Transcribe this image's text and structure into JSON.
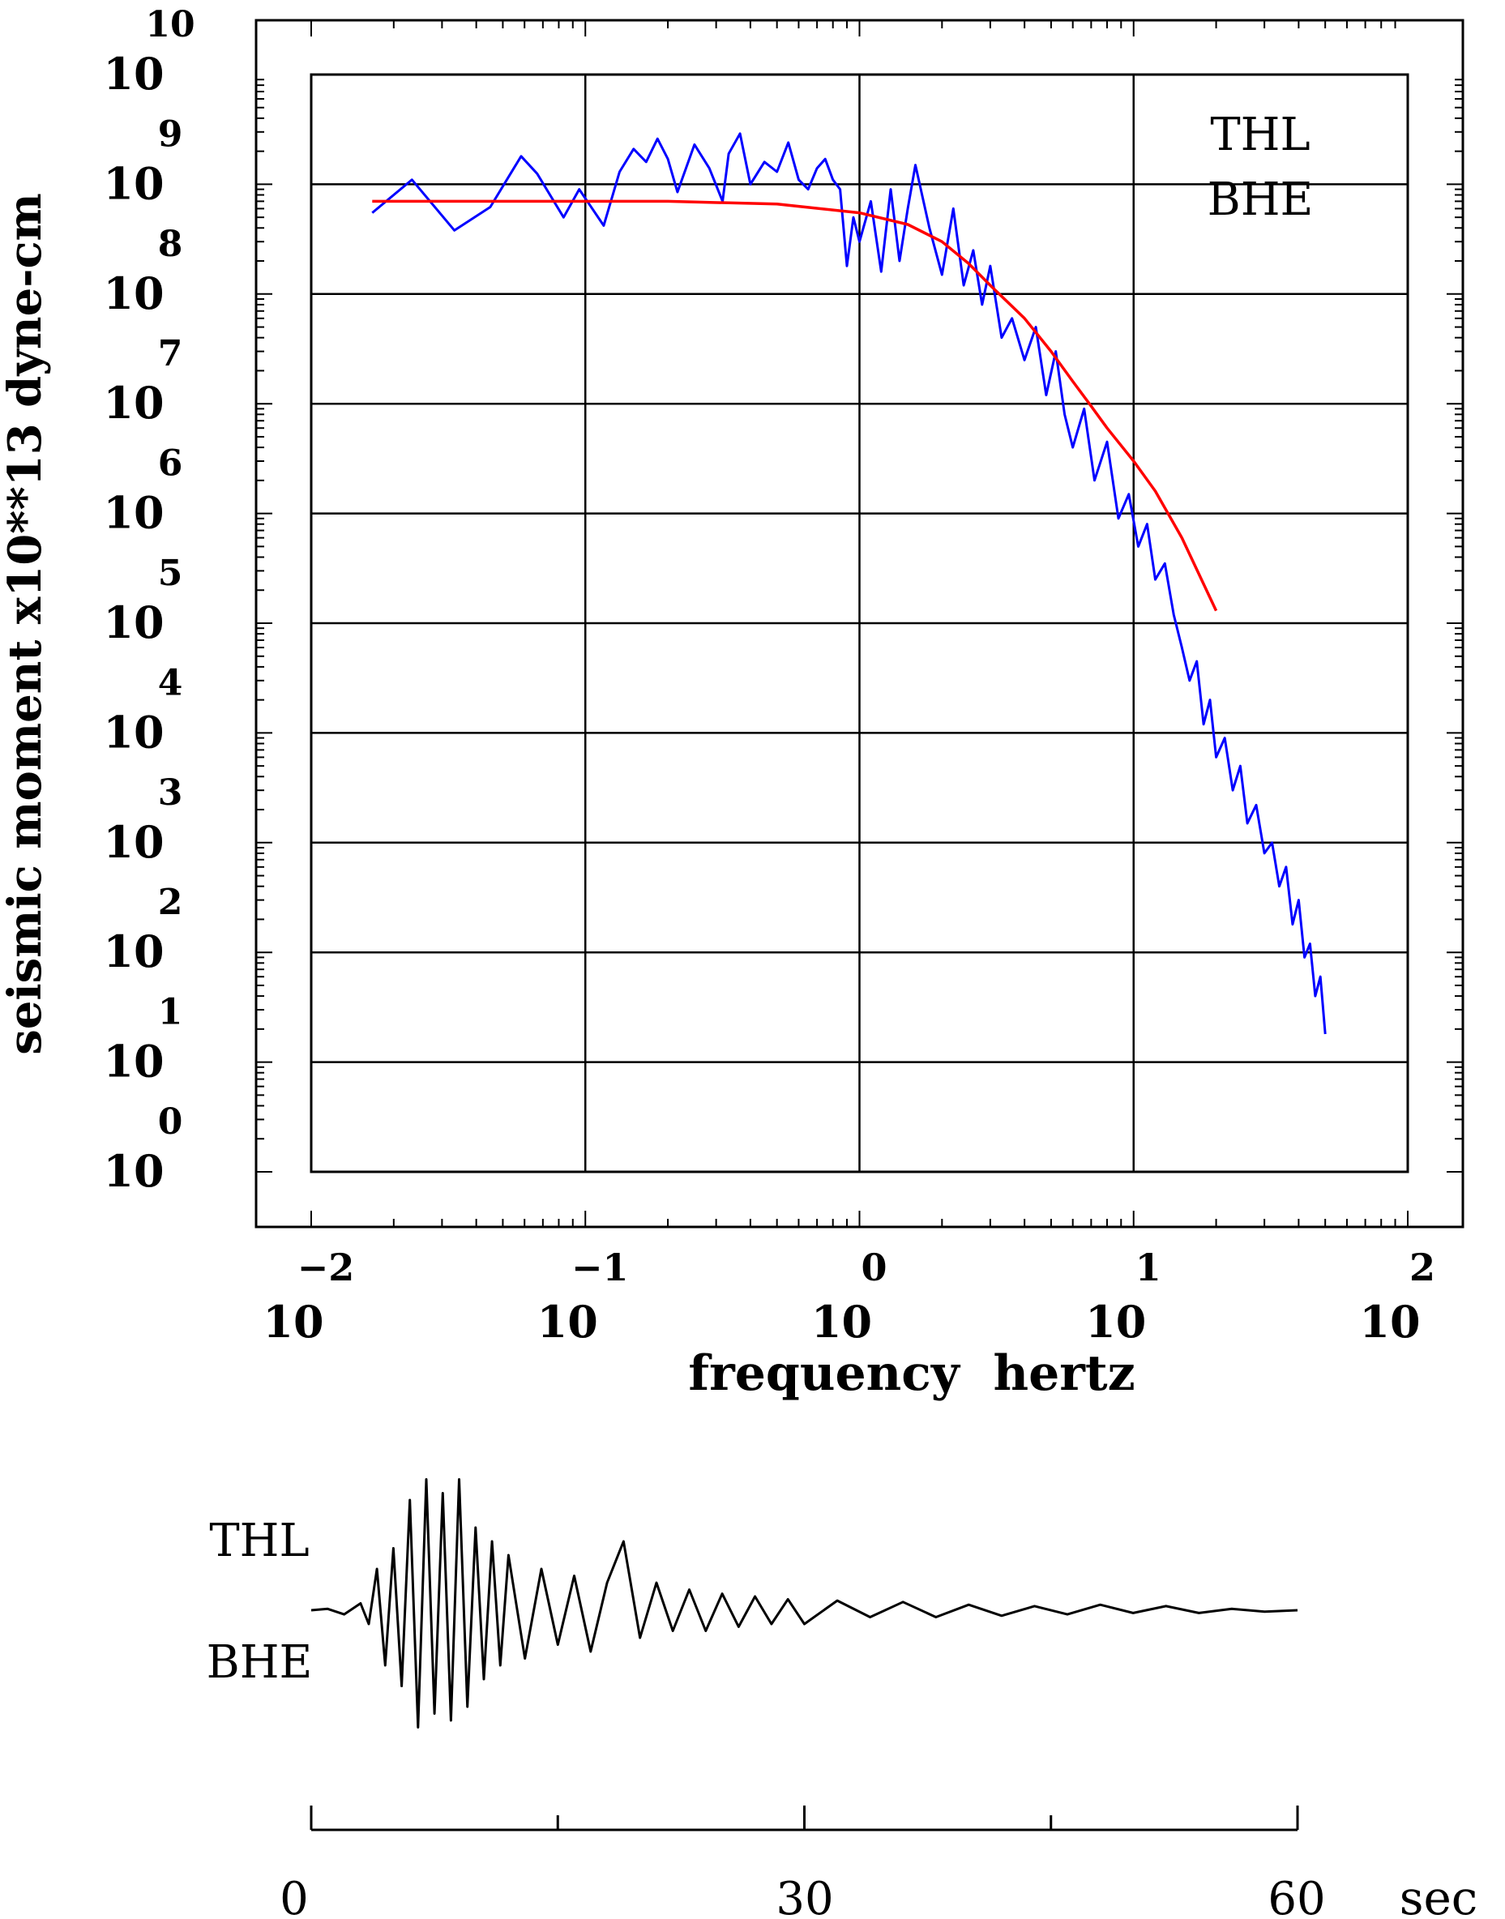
{
  "chart_data": [
    {
      "type": "line",
      "xscale": "log",
      "yscale": "log",
      "xlim": [
        0.01,
        100
      ],
      "ylim": [
        1,
        10000000000
      ],
      "xlabel": "frequency  hertz",
      "ylabel": "seismic moment x10**13 dyne-cm",
      "grid": true,
      "x_ticks": [
        {
          "base": "10",
          "exp": "-2"
        },
        {
          "base": "10",
          "exp": "-1"
        },
        {
          "base": "10",
          "exp": "0"
        },
        {
          "base": "10",
          "exp": "1"
        },
        {
          "base": "10",
          "exp": "2"
        }
      ],
      "y_ticks": [
        {
          "base": "10",
          "exp": "0"
        },
        {
          "base": "10",
          "exp": "1"
        },
        {
          "base": "10",
          "exp": "2"
        },
        {
          "base": "10",
          "exp": "3"
        },
        {
          "base": "10",
          "exp": "4"
        },
        {
          "base": "10",
          "exp": "5"
        },
        {
          "base": "10",
          "exp": "6"
        },
        {
          "base": "10",
          "exp": "7"
        },
        {
          "base": "10",
          "exp": "8"
        },
        {
          "base": "10",
          "exp": "9"
        },
        {
          "base": "10",
          "exp": "10"
        }
      ],
      "annotations": [
        "THL",
        "BHE"
      ],
      "series": [
        {
          "color": "#0000ff",
          "x": [
            0.0167,
            0.0233,
            0.0333,
            0.045,
            0.0583,
            0.0667,
            0.0833,
            0.095,
            0.1167,
            0.1333,
            0.15,
            0.1667,
            0.1833,
            0.2,
            0.2167,
            0.25,
            0.2833,
            0.3167,
            0.3333,
            0.3667,
            0.4,
            0.45,
            0.5,
            0.55,
            0.6,
            0.65,
            0.7,
            0.75,
            0.8,
            0.85,
            0.9,
            0.95,
            1.0,
            1.1,
            1.2,
            1.3,
            1.4,
            1.5,
            1.6,
            1.8,
            2.0,
            2.2,
            2.4,
            2.6,
            2.8,
            3.0,
            3.3,
            3.6,
            4.0,
            4.4,
            4.8,
            5.2,
            5.6,
            6.0,
            6.6,
            7.2,
            8.0,
            8.8,
            9.6,
            10.4,
            11.2,
            12.0,
            13.0,
            14.0,
            15.0,
            16.0,
            17.0,
            18.0,
            19.0,
            20.0,
            21.5,
            23.0,
            24.5,
            26.0,
            28.0,
            30.0,
            32.0,
            34.0,
            36.0,
            38.0,
            40.0,
            42.0,
            44.0,
            46.0,
            48.0,
            50.0
          ],
          "y": [
            550000000,
            1100000000,
            380000000,
            620000000,
            1800000000,
            1250000000,
            500000000,
            900000000,
            420000000,
            1300000000,
            2100000000,
            1600000000,
            2600000000,
            1700000000,
            850000000,
            2300000000,
            1400000000,
            700000000,
            1900000000,
            2900000000,
            1000000000,
            1600000000,
            1300000000,
            2400000000,
            1100000000,
            900000000,
            1400000000,
            1700000000,
            1100000000,
            900000000,
            180000000,
            500000000,
            300000000,
            700000000,
            160000000,
            900000000,
            200000000,
            600000000,
            1500000000,
            400000000,
            150000000,
            600000000,
            120000000,
            250000000,
            80000000,
            180000000,
            40000000,
            60000000,
            25000000,
            50000000,
            12000000,
            30000000,
            8000000,
            4000000,
            9000000,
            2000000,
            4500000,
            900000,
            1500000,
            500000,
            800000,
            250000,
            350000,
            120000,
            60000,
            30000,
            45000,
            12000,
            20000,
            6000,
            9000,
            3000,
            5000,
            1500,
            2200,
            800,
            1000,
            400,
            600,
            180,
            300,
            90,
            120,
            40,
            60,
            18
          ]
        },
        {
          "color": "#ff0000",
          "x": [
            0.0167,
            0.05,
            0.1,
            0.2,
            0.5,
            1.0,
            1.5,
            2.0,
            2.5,
            3.0,
            4.0,
            5.0,
            6.0,
            7.0,
            8.0,
            10.0,
            12.0,
            15.0,
            20.0
          ],
          "y": [
            700000000,
            700000000,
            700000000,
            700000000,
            660000000,
            550000000,
            430000000,
            300000000,
            190000000,
            120000000,
            60000000,
            30000000,
            16000000,
            9500000,
            6000000,
            3000000,
            1600000,
            600000,
            130000
          ]
        }
      ]
    },
    {
      "type": "line",
      "x_ticks": [
        "0",
        "30",
        "60"
      ],
      "x_unit": "sec",
      "xlim": [
        0,
        60
      ],
      "annotations": [
        "THL",
        "BHE"
      ],
      "series": [
        {
          "color": "#000000",
          "x": [
            0,
            1,
            2,
            3,
            3.5,
            4,
            4.5,
            5,
            5.5,
            6,
            6.5,
            7,
            7.5,
            8,
            8.5,
            9,
            9.5,
            10,
            10.5,
            11,
            11.5,
            12,
            13,
            14,
            15,
            16,
            17,
            18,
            19,
            20,
            21,
            22,
            23,
            24,
            25,
            26,
            27,
            28,
            29,
            30,
            32,
            34,
            36,
            38,
            40,
            42,
            44,
            46,
            48,
            50,
            52,
            54,
            56,
            58,
            60
          ],
          "y": [
            0,
            0.01,
            -0.03,
            0.05,
            -0.1,
            0.3,
            -0.4,
            0.45,
            -0.55,
            0.8,
            -0.85,
            0.95,
            -0.75,
            0.85,
            -0.8,
            0.95,
            -0.7,
            0.6,
            -0.5,
            0.5,
            -0.4,
            0.4,
            -0.35,
            0.3,
            -0.25,
            0.25,
            -0.3,
            0.2,
            0.5,
            -0.2,
            0.2,
            -0.15,
            0.15,
            -0.15,
            0.12,
            -0.12,
            0.1,
            -0.1,
            0.08,
            -0.1,
            0.07,
            -0.05,
            0.06,
            -0.05,
            0.04,
            -0.04,
            0.03,
            -0.03,
            0.04,
            -0.02,
            0.03,
            -0.02,
            0.01,
            -0.01,
            0
          ]
        }
      ]
    }
  ]
}
